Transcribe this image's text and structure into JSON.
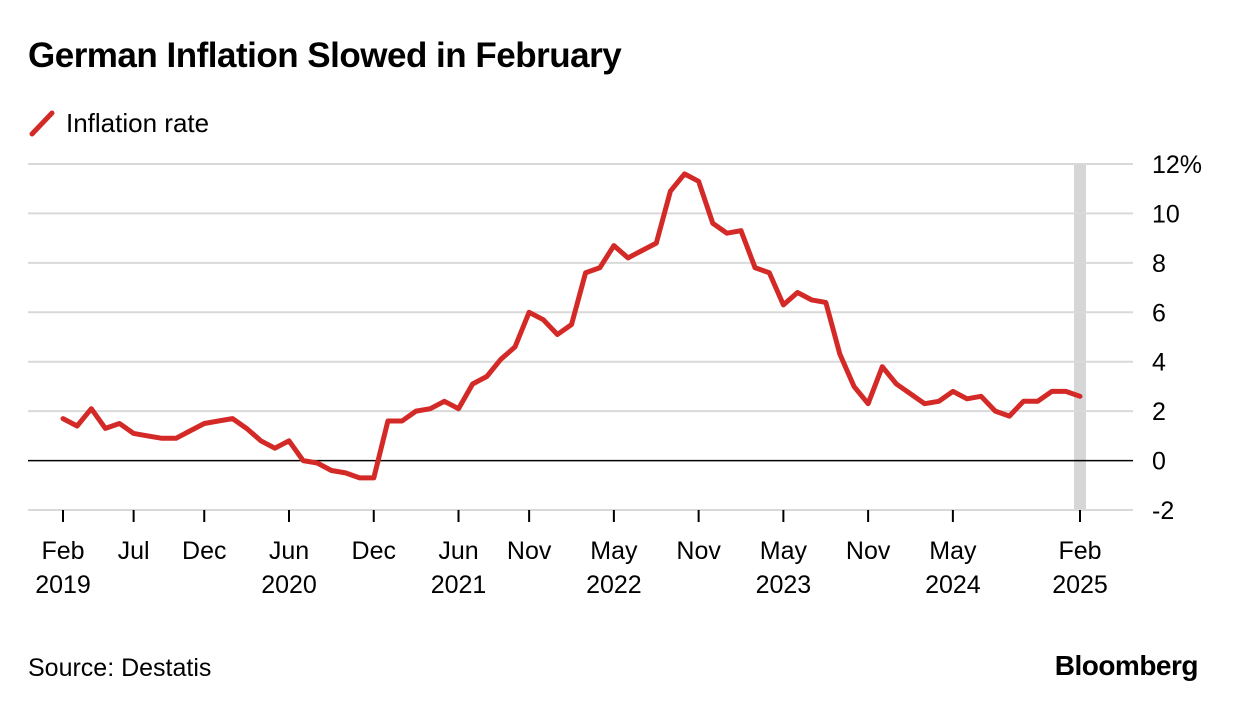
{
  "title": "German Inflation Slowed in February",
  "source": "Source: Destatis",
  "brand": "Bloomberg",
  "colors": {
    "series": "#d42a27",
    "grid": "#d9d9d9",
    "highlight": "#d6d6d6",
    "zero_line": "#000000"
  },
  "chart_data": {
    "type": "line",
    "title": "German Inflation Slowed in February",
    "xlabel": "",
    "ylabel": "",
    "ylim": [
      -2,
      12
    ],
    "y_ticks": [
      {
        "value": 12,
        "label": "12%"
      },
      {
        "value": 10,
        "label": "10"
      },
      {
        "value": 8,
        "label": "8"
      },
      {
        "value": 6,
        "label": "6"
      },
      {
        "value": 4,
        "label": "4"
      },
      {
        "value": 2,
        "label": "2"
      },
      {
        "value": 0,
        "label": "0"
      },
      {
        "value": -2,
        "label": "-2"
      }
    ],
    "x_ticks": [
      {
        "index": 0,
        "label": "Feb",
        "sublabel": "2019"
      },
      {
        "index": 5,
        "label": "Jul",
        "sublabel": ""
      },
      {
        "index": 10,
        "label": "Dec",
        "sublabel": ""
      },
      {
        "index": 16,
        "label": "Jun",
        "sublabel": "2020"
      },
      {
        "index": 22,
        "label": "Dec",
        "sublabel": ""
      },
      {
        "index": 28,
        "label": "Jun",
        "sublabel": "2021"
      },
      {
        "index": 33,
        "label": "Nov",
        "sublabel": ""
      },
      {
        "index": 39,
        "label": "May",
        "sublabel": "2022"
      },
      {
        "index": 45,
        "label": "Nov",
        "sublabel": ""
      },
      {
        "index": 51,
        "label": "May",
        "sublabel": "2023"
      },
      {
        "index": 57,
        "label": "Nov",
        "sublabel": ""
      },
      {
        "index": 63,
        "label": "May",
        "sublabel": "2024"
      },
      {
        "index": 72,
        "label": "Feb",
        "sublabel": "2025"
      }
    ],
    "highlight_index": 72,
    "grid": true,
    "legend": "top-left",
    "series": [
      {
        "name": "Inflation rate",
        "start": "Feb 2019",
        "frequency": "monthly",
        "values": [
          1.7,
          1.4,
          2.1,
          1.3,
          1.5,
          1.1,
          1.0,
          0.9,
          0.9,
          1.2,
          1.5,
          1.6,
          1.7,
          1.3,
          0.8,
          0.5,
          0.8,
          0.0,
          -0.1,
          -0.4,
          -0.5,
          -0.7,
          -0.7,
          1.6,
          1.6,
          2.0,
          2.1,
          2.4,
          2.1,
          3.1,
          3.4,
          4.1,
          4.6,
          6.0,
          5.7,
          5.1,
          5.5,
          7.6,
          7.8,
          8.7,
          8.2,
          8.5,
          8.8,
          10.9,
          11.6,
          11.3,
          9.6,
          9.2,
          9.3,
          7.8,
          7.6,
          6.3,
          6.8,
          6.5,
          6.4,
          4.3,
          3.0,
          2.3,
          3.8,
          3.1,
          2.7,
          2.3,
          2.4,
          2.8,
          2.5,
          2.6,
          2.0,
          1.8,
          2.4,
          2.4,
          2.8,
          2.8,
          2.6
        ]
      }
    ]
  }
}
